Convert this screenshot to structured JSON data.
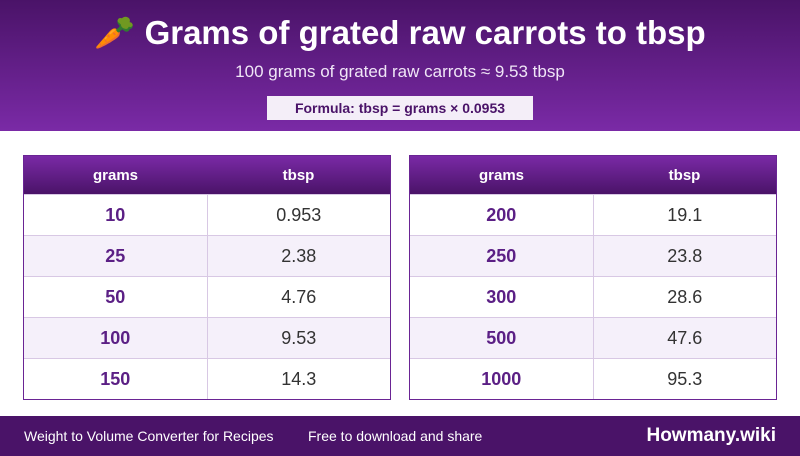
{
  "header": {
    "icon": "🥕",
    "title": "Grams of grated raw carrots to tbsp",
    "subtitle": "100 grams of grated raw carrots ≈ 9.53 tbsp",
    "formula": "Formula: tbsp = grams × 0.0953"
  },
  "tables": [
    {
      "columns": [
        "grams",
        "tbsp"
      ],
      "rows": [
        [
          "10",
          "0.953"
        ],
        [
          "25",
          "2.38"
        ],
        [
          "50",
          "4.76"
        ],
        [
          "100",
          "9.53"
        ],
        [
          "150",
          "14.3"
        ]
      ]
    },
    {
      "columns": [
        "grams",
        "tbsp"
      ],
      "rows": [
        [
          "200",
          "19.1"
        ],
        [
          "250",
          "23.8"
        ],
        [
          "300",
          "28.6"
        ],
        [
          "500",
          "47.6"
        ],
        [
          "1000",
          "95.3"
        ]
      ]
    }
  ],
  "footer": {
    "left": "Weight to Volume Converter for Recipes",
    "middle": "Free to download and share",
    "brand": "Howmany.wiki"
  }
}
